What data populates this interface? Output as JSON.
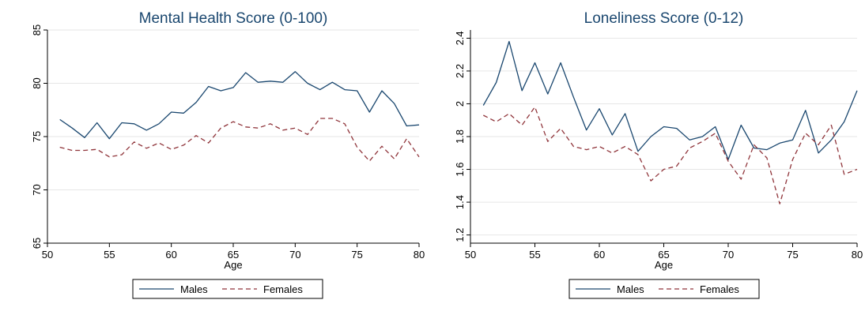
{
  "chart_data": [
    {
      "type": "line",
      "title": "Mental Health Score (0-100)",
      "xlabel": "Age",
      "ylabel": "",
      "xlim": [
        50,
        80
      ],
      "ylim": [
        65,
        85
      ],
      "xticks": [
        50,
        55,
        60,
        65,
        70,
        75,
        80
      ],
      "yticks": [
        65,
        70,
        75,
        80,
        85
      ],
      "grid": "horizontal",
      "legend": "bottom",
      "x": [
        51,
        52,
        53,
        54,
        55,
        56,
        57,
        58,
        59,
        60,
        61,
        62,
        63,
        64,
        65,
        66,
        67,
        68,
        69,
        70,
        71,
        72,
        73,
        74,
        75,
        76,
        77,
        78,
        79,
        80
      ],
      "series": [
        {
          "name": "Males",
          "color": "#1a476f",
          "style": "solid",
          "values": [
            76.6,
            75.8,
            74.9,
            76.3,
            74.8,
            76.3,
            76.2,
            75.6,
            76.2,
            77.3,
            77.2,
            78.2,
            79.7,
            79.3,
            79.6,
            81.0,
            80.1,
            80.2,
            80.1,
            81.1,
            80.0,
            79.4,
            80.1,
            79.4,
            79.3,
            77.3,
            79.3,
            78.1,
            76.0,
            76.1
          ]
        },
        {
          "name": "Females",
          "color": "#90353b",
          "style": "dashed",
          "values": [
            74.0,
            73.7,
            73.7,
            73.8,
            73.1,
            73.3,
            74.5,
            73.9,
            74.4,
            73.8,
            74.2,
            75.1,
            74.4,
            75.8,
            76.4,
            75.9,
            75.8,
            76.2,
            75.6,
            75.8,
            75.2,
            76.7,
            76.7,
            76.2,
            74.0,
            72.7,
            74.1,
            72.9,
            74.8,
            73.1
          ]
        }
      ]
    },
    {
      "type": "line",
      "title": "Loneliness Score (0-12)",
      "xlabel": "Age",
      "ylabel": "",
      "xlim": [
        50,
        80
      ],
      "ylim": [
        1.15,
        2.45
      ],
      "xticks": [
        50,
        55,
        60,
        65,
        70,
        75,
        80
      ],
      "yticks": [
        1.2,
        1.4,
        1.6,
        1.8,
        2,
        2.2,
        2.4
      ],
      "grid": "horizontal",
      "legend": "bottom",
      "x": [
        51,
        52,
        53,
        54,
        55,
        56,
        57,
        58,
        59,
        60,
        61,
        62,
        63,
        64,
        65,
        66,
        67,
        68,
        69,
        70,
        71,
        72,
        73,
        74,
        75,
        76,
        77,
        78,
        79,
        80
      ],
      "series": [
        {
          "name": "Males",
          "color": "#1a476f",
          "style": "solid",
          "values": [
            1.99,
            2.13,
            2.38,
            2.08,
            2.25,
            2.06,
            2.25,
            2.04,
            1.84,
            1.97,
            1.81,
            1.94,
            1.71,
            1.8,
            1.86,
            1.85,
            1.78,
            1.8,
            1.86,
            1.66,
            1.87,
            1.73,
            1.72,
            1.76,
            1.78,
            1.96,
            1.7,
            1.78,
            1.89,
            2.08
          ]
        },
        {
          "name": "Females",
          "color": "#90353b",
          "style": "dashed",
          "values": [
            1.93,
            1.89,
            1.94,
            1.87,
            1.98,
            1.77,
            1.85,
            1.74,
            1.72,
            1.74,
            1.7,
            1.74,
            1.69,
            1.53,
            1.6,
            1.62,
            1.73,
            1.77,
            1.82,
            1.65,
            1.54,
            1.75,
            1.67,
            1.39,
            1.66,
            1.82,
            1.75,
            1.87,
            1.57,
            1.6
          ]
        }
      ]
    }
  ]
}
